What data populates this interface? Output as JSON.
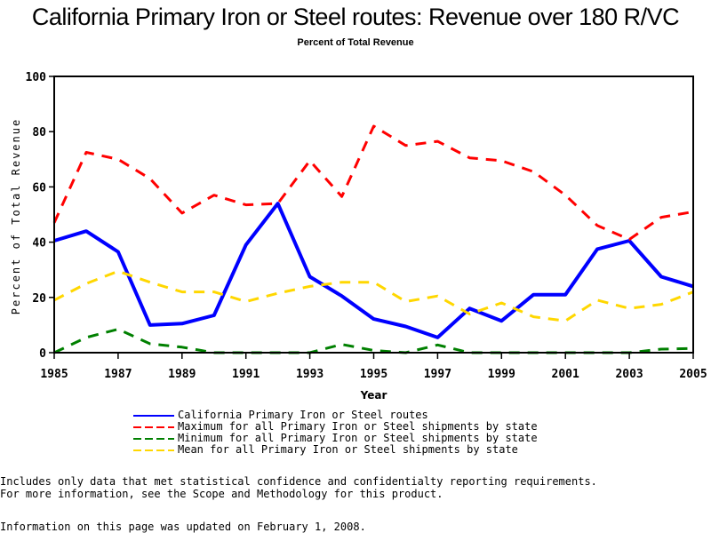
{
  "chart_data": {
    "type": "line",
    "title": "California Primary Iron or Steel routes: Revenue over 180 R/VC",
    "subtitle": "Percent of Total Revenue",
    "xlabel": "Year",
    "ylabel": "Percent of Total Revenue",
    "xlim": [
      1985,
      2005
    ],
    "ylim": [
      0,
      100
    ],
    "x_ticks": [
      "1985",
      "1987",
      "1989",
      "1991",
      "1993",
      "1995",
      "1997",
      "1999",
      "2001",
      "2003",
      "2005"
    ],
    "y_ticks": [
      "0",
      "20",
      "40",
      "60",
      "80",
      "100"
    ],
    "grid": false,
    "legend_position": "bottom",
    "x": [
      1985,
      1986,
      1987,
      1988,
      1989,
      1990,
      1991,
      1992,
      1993,
      1994,
      1995,
      1996,
      1997,
      1998,
      1999,
      2000,
      2001,
      2002,
      2003,
      2004,
      2005
    ],
    "series": [
      {
        "name": "California Primary Iron or Steel routes",
        "color": "#0000ff",
        "style": "solid",
        "values": [
          40.5,
          44,
          36.5,
          10,
          10.5,
          13.5,
          39,
          54,
          27.5,
          20.5,
          12.2,
          9.5,
          5.5,
          16,
          11.5,
          21,
          21,
          37.5,
          40.5,
          27.5,
          24
        ]
      },
      {
        "name": "Maximum for all Primary Iron or Steel shipments by state",
        "color": "#ff0000",
        "style": "dashed",
        "values": [
          47,
          72.5,
          70,
          63,
          50.5,
          57,
          53.5,
          54,
          69.5,
          56.5,
          82,
          75,
          76.5,
          70.5,
          69.5,
          65.5,
          57,
          46,
          41,
          49,
          51
        ]
      },
      {
        "name": "Minimum for all Primary Iron or Steel shipments by state",
        "color": "#008000",
        "style": "dashed",
        "values": [
          0,
          5.5,
          8.5,
          3.2,
          2,
          0,
          0,
          0,
          0,
          3,
          0.8,
          0,
          2.8,
          0,
          0,
          0,
          0,
          0,
          0,
          1.3,
          1.5
        ]
      },
      {
        "name": "Mean for all Primary Iron or Steel shipments by state",
        "color": "#ffd700",
        "style": "dashed",
        "values": [
          19,
          25,
          29.5,
          25.5,
          22,
          22,
          18.5,
          21.5,
          24,
          25.5,
          25.5,
          18.5,
          20.5,
          14,
          18,
          13,
          11.5,
          19,
          16,
          17.5,
          22
        ]
      }
    ]
  },
  "footnotes": {
    "line1": "Includes only data that met statistical confidence and confidentialty reporting requirements.",
    "line2": "For more information, see the Scope and Methodology for this product.",
    "updated": "Information on this page was updated on February 1, 2008."
  }
}
